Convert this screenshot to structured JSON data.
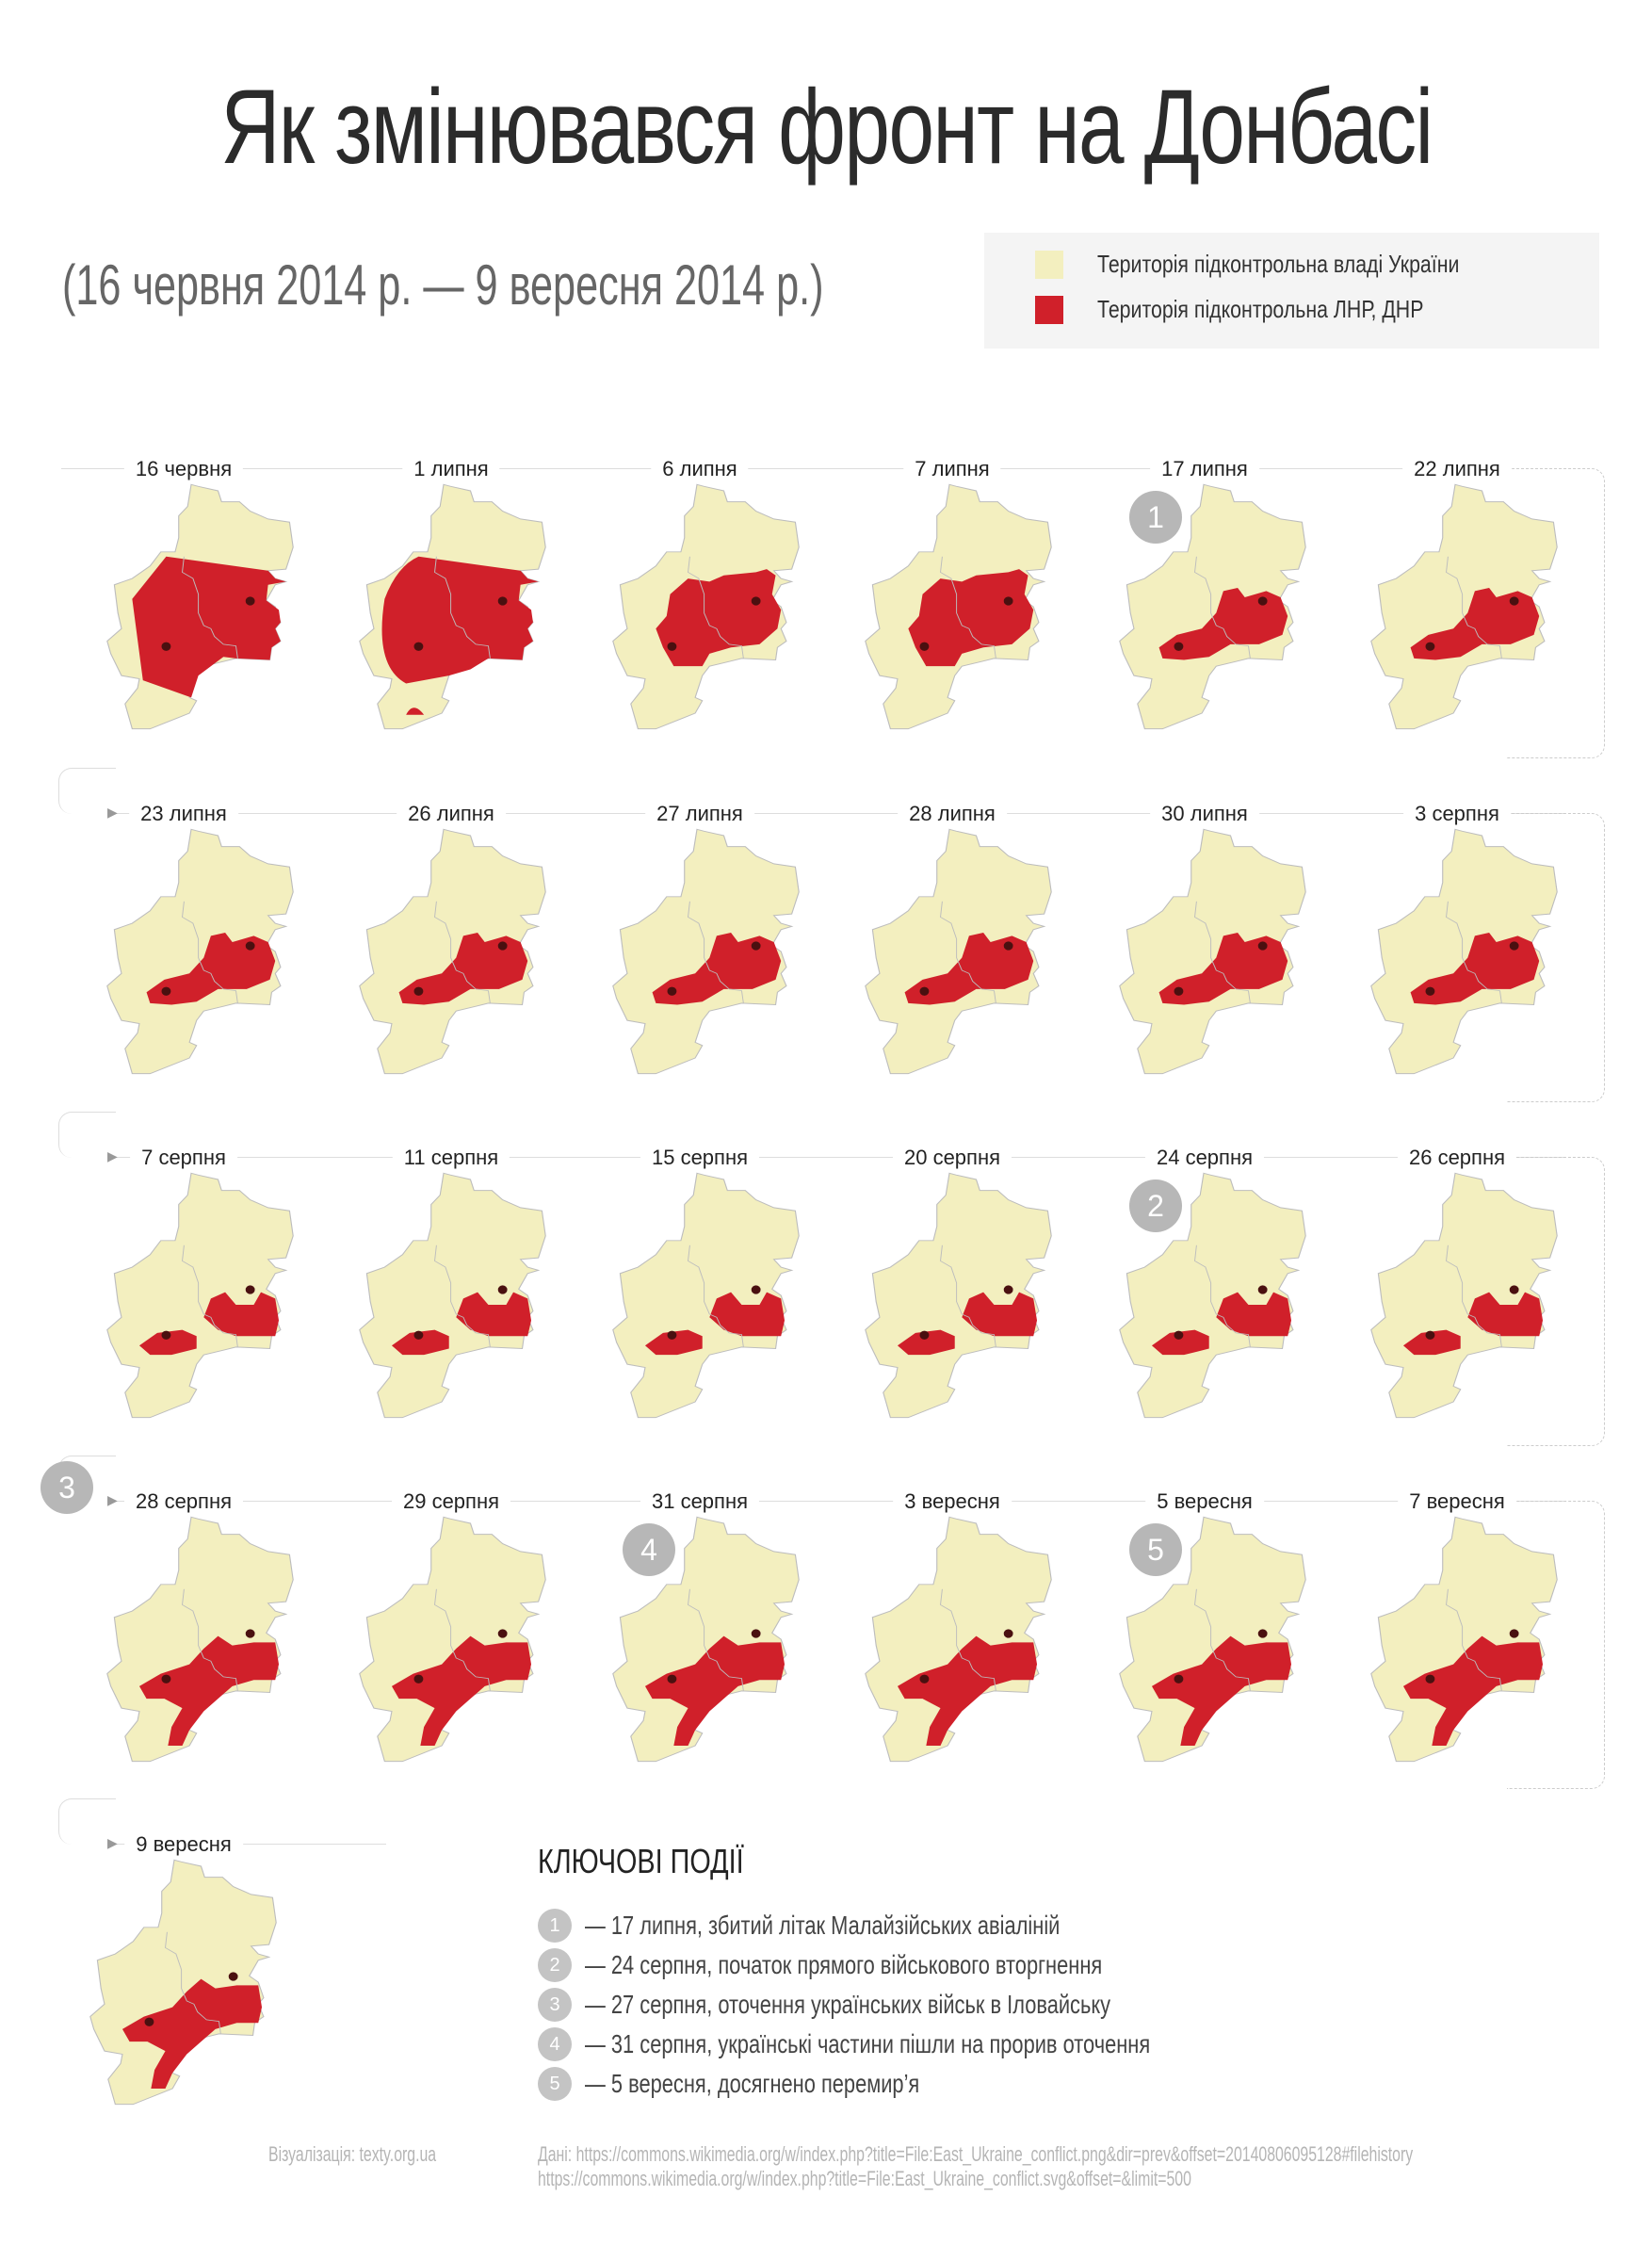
{
  "header": {
    "title": "Як змінювався фронт на Донбасі",
    "subtitle": "(16 червня 2014 р. — 9 вересня 2014 р.)"
  },
  "legend": {
    "items": [
      {
        "label": "Територія підконтрольна владі України",
        "color": "#f3efbf"
      },
      {
        "label": "Територія підконтрольна ЛНР, ДНР",
        "color": "#d0202a"
      }
    ]
  },
  "colors": {
    "ukraine": "#f3efbf",
    "separatist": "#d0202a",
    "border": "#bdbdbd",
    "city": "#4a1010",
    "badge": "#b7b7b7"
  },
  "maps": [
    {
      "date": "16 червня"
    },
    {
      "date": "1 липня"
    },
    {
      "date": "6 липня"
    },
    {
      "date": "7 липня"
    },
    {
      "date": "17 липня",
      "badge": "1"
    },
    {
      "date": "22 липня"
    },
    {
      "date": "23 липня"
    },
    {
      "date": "26 липня"
    },
    {
      "date": "27 липня"
    },
    {
      "date": "28 липня"
    },
    {
      "date": "30 липня"
    },
    {
      "date": "3 серпня"
    },
    {
      "date": "7 серпня"
    },
    {
      "date": "11 серпня"
    },
    {
      "date": "15 серпня"
    },
    {
      "date": "20 серпня"
    },
    {
      "date": "24 серпня",
      "badge": "2"
    },
    {
      "date": "26 серпня"
    },
    {
      "date": "28 серпня",
      "row_badge": "3"
    },
    {
      "date": "29 серпня"
    },
    {
      "date": "31 серпня",
      "badge": "4"
    },
    {
      "date": "3 вересня"
    },
    {
      "date": "5 вересня",
      "badge": "5"
    },
    {
      "date": "7 вересня"
    },
    {
      "date": "9 вересня"
    }
  ],
  "events": {
    "title": "КЛЮЧОВІ ПОДІЇ",
    "items": [
      {
        "num": "1",
        "text": "— 17 липня, збитий літак Малайзійських авіаліній"
      },
      {
        "num": "2",
        "text": "— 24 серпня, початок прямого військового вторгнення"
      },
      {
        "num": "3",
        "text": "— 27 серпня, оточення українських військ в Іловайську"
      },
      {
        "num": "4",
        "text": "— 31 серпня, українські частини пішли на прорив оточення"
      },
      {
        "num": "5",
        "text": "— 5 вересня, досягнено перемир’я"
      }
    ]
  },
  "credits": {
    "visualization": "Візуалізація: texty.org.ua",
    "data_line1": "Дані: https://commons.wikimedia.org/w/index.php?title=File:East_Ukraine_conflict.png&dir=prev&offset=20140806095128#filehistory",
    "data_line2": "https://commons.wikimedia.org/w/index.php?title=File:East_Ukraine_conflict.svg&offset=&limit=500"
  }
}
